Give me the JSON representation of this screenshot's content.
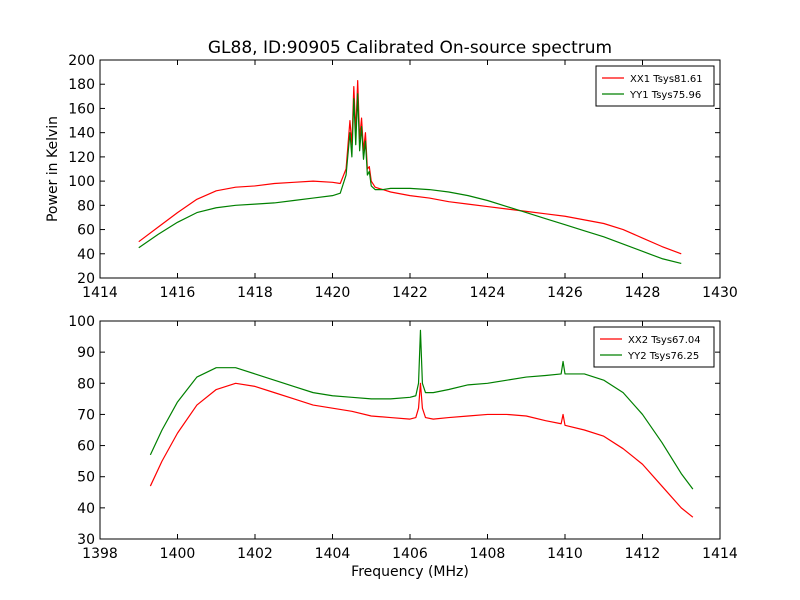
{
  "figure": {
    "title": "GL88, ID:90905 Calibrated On-source spectrum",
    "xlabel": "Frequency (MHz)",
    "ylabel": "Power in Kelvin"
  },
  "chart_data": [
    {
      "type": "line",
      "title": "GL88, ID:90905 Calibrated On-source spectrum",
      "xlabel": "",
      "ylabel": "Power in Kelvin",
      "xlim": [
        1414,
        1430
      ],
      "ylim": [
        20,
        200
      ],
      "xticks": [
        "1414",
        "1416",
        "1418",
        "1420",
        "1422",
        "1424",
        "1426",
        "1428",
        "1430"
      ],
      "yticks": [
        "20",
        "40",
        "60",
        "80",
        "100",
        "120",
        "140",
        "160",
        "180",
        "200"
      ],
      "legend": "top-right",
      "grid": false,
      "series": [
        {
          "name": "XX1 Tsys81.61",
          "color": "#ff0000",
          "x": [
            1415.0,
            1415.5,
            1416.0,
            1416.5,
            1417.0,
            1417.5,
            1418.0,
            1418.5,
            1419.0,
            1419.5,
            1420.0,
            1420.2,
            1420.35,
            1420.45,
            1420.5,
            1420.55,
            1420.6,
            1420.65,
            1420.7,
            1420.75,
            1420.8,
            1420.85,
            1420.9,
            1420.95,
            1421.0,
            1421.1,
            1421.3,
            1421.5,
            1422.0,
            1422.5,
            1423.0,
            1423.5,
            1424.0,
            1424.5,
            1425.0,
            1425.5,
            1426.0,
            1426.5,
            1427.0,
            1427.5,
            1428.0,
            1428.5,
            1429.0
          ],
          "values": [
            50,
            62,
            74,
            85,
            92,
            95,
            96,
            98,
            99,
            100,
            99,
            98,
            110,
            150,
            130,
            178,
            140,
            183,
            135,
            152,
            125,
            140,
            110,
            112,
            100,
            95,
            93,
            91,
            88,
            86,
            83,
            81,
            79,
            77,
            75,
            73,
            71,
            68,
            65,
            60,
            53,
            46,
            40
          ]
        },
        {
          "name": "YY1 Tsys75.96",
          "color": "#008000",
          "x": [
            1415.0,
            1415.5,
            1416.0,
            1416.5,
            1417.0,
            1417.5,
            1418.0,
            1418.5,
            1419.0,
            1419.5,
            1420.0,
            1420.2,
            1420.35,
            1420.45,
            1420.5,
            1420.55,
            1420.6,
            1420.65,
            1420.7,
            1420.75,
            1420.8,
            1420.85,
            1420.9,
            1420.95,
            1421.0,
            1421.1,
            1421.3,
            1421.5,
            1422.0,
            1422.5,
            1423.0,
            1423.5,
            1424.0,
            1424.5,
            1425.0,
            1425.5,
            1426.0,
            1426.5,
            1427.0,
            1427.5,
            1428.0,
            1428.5,
            1429.0
          ],
          "values": [
            45,
            56,
            66,
            74,
            78,
            80,
            81,
            82,
            84,
            86,
            88,
            90,
            105,
            140,
            120,
            168,
            130,
            172,
            125,
            145,
            118,
            133,
            105,
            108,
            96,
            93,
            93,
            94,
            94,
            93,
            91,
            88,
            84,
            79,
            74,
            69,
            64,
            59,
            54,
            48,
            42,
            36,
            32
          ]
        }
      ]
    },
    {
      "type": "line",
      "title": "",
      "xlabel": "Frequency (MHz)",
      "ylabel": "",
      "xlim": [
        1398,
        1414
      ],
      "ylim": [
        30,
        100
      ],
      "xticks": [
        "1398",
        "1400",
        "1402",
        "1404",
        "1406",
        "1408",
        "1410",
        "1412",
        "1414"
      ],
      "yticks": [
        "30",
        "40",
        "50",
        "60",
        "70",
        "80",
        "90",
        "100"
      ],
      "legend": "top-right",
      "grid": false,
      "series": [
        {
          "name": "XX2 Tsys67.04",
          "color": "#ff0000",
          "x": [
            1399.3,
            1399.6,
            1400.0,
            1400.5,
            1401.0,
            1401.5,
            1402.0,
            1402.5,
            1403.0,
            1403.5,
            1404.0,
            1404.5,
            1405.0,
            1405.5,
            1406.0,
            1406.15,
            1406.22,
            1406.27,
            1406.32,
            1406.4,
            1406.6,
            1407.0,
            1407.5,
            1408.0,
            1408.5,
            1409.0,
            1409.5,
            1409.9,
            1409.95,
            1410.0,
            1410.5,
            1411.0,
            1411.5,
            1412.0,
            1412.5,
            1413.0,
            1413.3
          ],
          "values": [
            47,
            55,
            64,
            73,
            78,
            80,
            79,
            77,
            75,
            73,
            72,
            71,
            69.5,
            69,
            68.5,
            69,
            72,
            80,
            72,
            69,
            68.5,
            69,
            69.5,
            70,
            70,
            69.5,
            68,
            67,
            70,
            66.5,
            65,
            63,
            59,
            54,
            47,
            40,
            37
          ]
        },
        {
          "name": "YY2 Tsys76.25",
          "color": "#008000",
          "x": [
            1399.3,
            1399.6,
            1400.0,
            1400.5,
            1401.0,
            1401.5,
            1402.0,
            1402.5,
            1403.0,
            1403.5,
            1404.0,
            1404.5,
            1405.0,
            1405.5,
            1406.0,
            1406.15,
            1406.22,
            1406.27,
            1406.32,
            1406.4,
            1406.6,
            1407.0,
            1407.5,
            1408.0,
            1408.5,
            1409.0,
            1409.5,
            1409.9,
            1409.95,
            1410.0,
            1410.5,
            1411.0,
            1411.5,
            1412.0,
            1412.5,
            1413.0,
            1413.3
          ],
          "values": [
            57,
            65,
            74,
            82,
            85,
            85,
            83,
            81,
            79,
            77,
            76,
            75.5,
            75,
            75,
            75.5,
            76,
            80,
            97,
            80,
            77,
            77,
            78,
            79.5,
            80,
            81,
            82,
            82.5,
            83,
            87,
            83,
            83,
            81,
            77,
            70,
            61,
            51,
            46
          ]
        }
      ]
    }
  ]
}
